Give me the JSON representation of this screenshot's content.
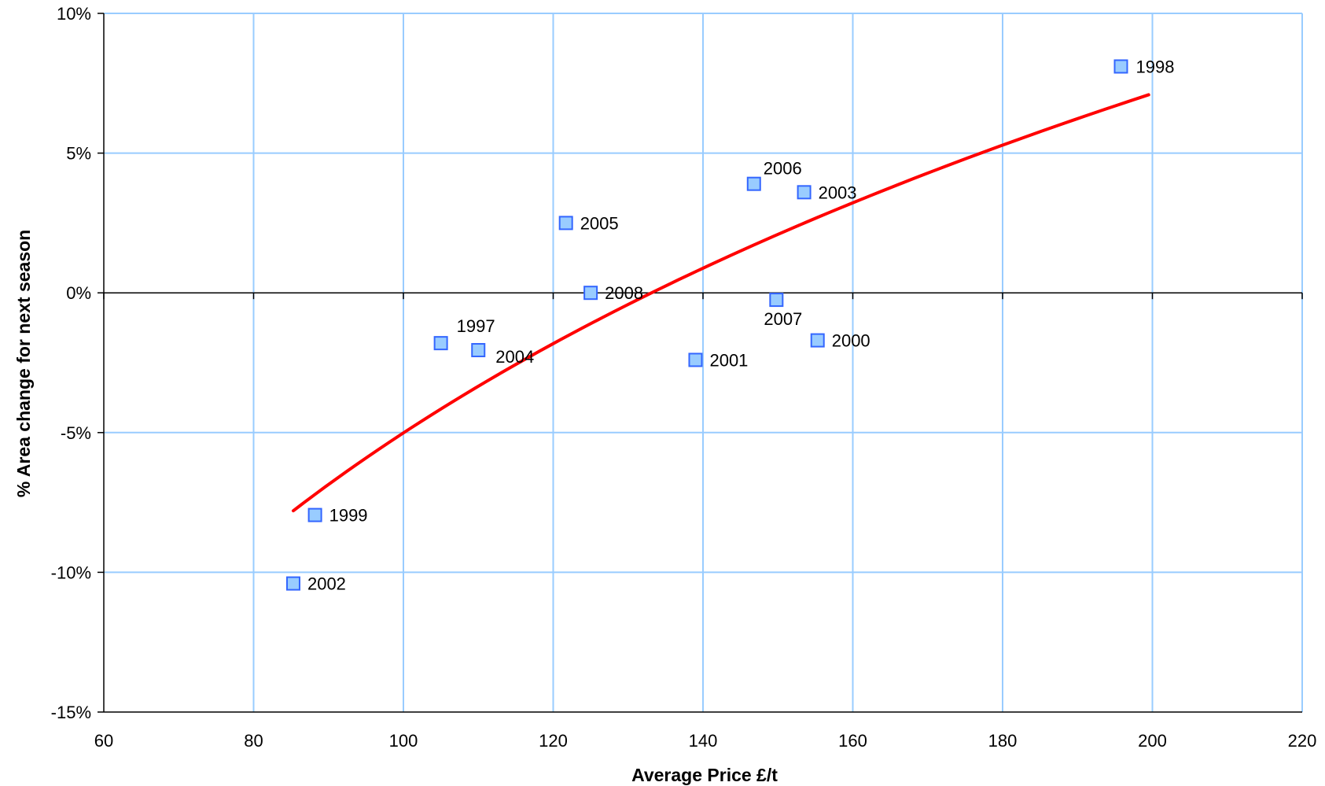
{
  "chart_data": {
    "type": "scatter",
    "title": "",
    "xlabel": "Average Price £/t",
    "ylabel": "% Area change for next season",
    "xlim": [
      60,
      220
    ],
    "ylim": [
      -15,
      10
    ],
    "x_ticks": [
      60,
      80,
      100,
      120,
      140,
      160,
      180,
      200,
      220
    ],
    "y_ticks": [
      10,
      5,
      0,
      -5,
      -10,
      -15
    ],
    "x_tick_labels": [
      "60",
      "80",
      "100",
      "120",
      "140",
      "160",
      "180",
      "200",
      "220"
    ],
    "y_tick_labels": [
      "10%",
      "5%",
      "0%",
      "-5%",
      "-10%",
      "-15%"
    ],
    "grid": true,
    "legend": false,
    "points": [
      {
        "label": "1998",
        "x": 195.8,
        "y": 8.1
      },
      {
        "label": "2006",
        "x": 146.8,
        "y": 3.9
      },
      {
        "label": "2003",
        "x": 153.5,
        "y": 3.6
      },
      {
        "label": "2005",
        "x": 121.7,
        "y": 2.5
      },
      {
        "label": "2008",
        "x": 125.0,
        "y": 0.0
      },
      {
        "label": "2007",
        "x": 149.8,
        "y": -0.25
      },
      {
        "label": "1997",
        "x": 105.0,
        "y": -1.8
      },
      {
        "label": "2004",
        "x": 110.0,
        "y": -2.05
      },
      {
        "label": "2000",
        "x": 155.3,
        "y": -1.7
      },
      {
        "label": "2001",
        "x": 139.0,
        "y": -2.4
      },
      {
        "label": "1999",
        "x": 88.2,
        "y": -7.95
      },
      {
        "label": "2002",
        "x": 85.3,
        "y": -10.4
      }
    ],
    "trendline": {
      "type": "logarithmic",
      "x": [
        85.3,
        100,
        120,
        140,
        160,
        180,
        199.5
      ],
      "y": [
        -7.8,
        -5.0,
        -1.8,
        0.85,
        3.2,
        5.3,
        7.1
      ]
    },
    "colors": {
      "marker_fill": "#99CCFF",
      "marker_stroke": "#3366FF",
      "trendline": "#FF0000",
      "gridline": "#99CCFF",
      "axis": "#000000"
    }
  }
}
